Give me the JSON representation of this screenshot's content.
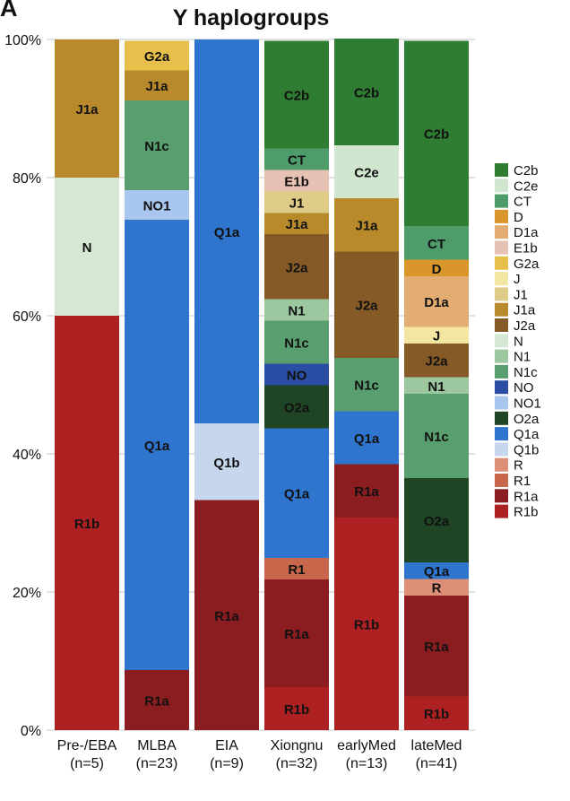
{
  "panel_letter": "A",
  "chart_data": {
    "type": "bar",
    "stacked": true,
    "title": "Y haplogroups",
    "xlabel": "",
    "ylabel": "",
    "ylim": [
      0,
      100
    ],
    "yticks": [
      "0%",
      "20%",
      "40%",
      "60%",
      "80%",
      "100%"
    ],
    "grid": true,
    "legend_position": "right",
    "categories": [
      {
        "name": "Pre-/EBA",
        "n": "(n=5)"
      },
      {
        "name": "MLBA",
        "n": "(n=23)"
      },
      {
        "name": "EIA",
        "n": "(n=9)"
      },
      {
        "name": "Xiongnu",
        "n": "(n=32)"
      },
      {
        "name": "earlyMed",
        "n": "(n=13)"
      },
      {
        "name": "lateMed",
        "n": "(n=41)"
      }
    ],
    "haplogroups": [
      {
        "name": "C2b",
        "color": "#2e7d32"
      },
      {
        "name": "C2e",
        "color": "#d0e6cf"
      },
      {
        "name": "CT",
        "color": "#4e9c69"
      },
      {
        "name": "D",
        "color": "#d9962a"
      },
      {
        "name": "D1a",
        "color": "#e2ac72"
      },
      {
        "name": "E1b",
        "color": "#e8c1b5"
      },
      {
        "name": "G2a",
        "color": "#e7c04c"
      },
      {
        "name": "J",
        "color": "#f2e6a2"
      },
      {
        "name": "J1",
        "color": "#decb88"
      },
      {
        "name": "J1a",
        "color": "#b88a2c"
      },
      {
        "name": "J2a",
        "color": "#855a26"
      },
      {
        "name": "N",
        "color": "#d6e7d3"
      },
      {
        "name": "N1",
        "color": "#9cc79f"
      },
      {
        "name": "N1c",
        "color": "#589e6e"
      },
      {
        "name": "NO",
        "color": "#2a4ea3"
      },
      {
        "name": "NO1",
        "color": "#a9c6ee"
      },
      {
        "name": "O2a",
        "color": "#1f4525"
      },
      {
        "name": "Q1a",
        "color": "#2f75cd"
      },
      {
        "name": "Q1b",
        "color": "#c6d6ec"
      },
      {
        "name": "R",
        "color": "#de8f77"
      },
      {
        "name": "R1",
        "color": "#c8674b"
      },
      {
        "name": "R1a",
        "color": "#8b1d20"
      },
      {
        "name": "R1b",
        "color": "#ae2122"
      }
    ],
    "stacks": [
      [
        {
          "group": "R1b",
          "value": 60
        },
        {
          "group": "N",
          "value": 20
        },
        {
          "group": "J1a",
          "value": 20
        }
      ],
      [
        {
          "group": "R1a",
          "value": 8.7
        },
        {
          "group": "Q1a",
          "value": 65.2
        },
        {
          "group": "NO1",
          "value": 4.3
        },
        {
          "group": "N1c",
          "value": 13.0
        },
        {
          "group": "J1a",
          "value": 4.3
        },
        {
          "group": "G2a",
          "value": 4.3
        }
      ],
      [
        {
          "group": "R1a",
          "value": 33.3
        },
        {
          "group": "Q1b",
          "value": 11.1
        },
        {
          "group": "Q1a",
          "value": 55.6
        }
      ],
      [
        {
          "group": "R1b",
          "value": 6.25
        },
        {
          "group": "R1a",
          "value": 15.6
        },
        {
          "group": "R1",
          "value": 3.1
        },
        {
          "group": "Q1a",
          "value": 18.75
        },
        {
          "group": "O2a",
          "value": 6.25
        },
        {
          "group": "NO",
          "value": 3.1
        },
        {
          "group": "N1c",
          "value": 6.25
        },
        {
          "group": "N1",
          "value": 3.1
        },
        {
          "group": "J2a",
          "value": 9.4
        },
        {
          "group": "J1a",
          "value": 3.1
        },
        {
          "group": "J1",
          "value": 3.1
        },
        {
          "group": "E1b",
          "value": 3.1
        },
        {
          "group": "CT",
          "value": 3.1
        },
        {
          "group": "C2b",
          "value": 15.6
        }
      ],
      [
        {
          "group": "R1b",
          "value": 30.8
        },
        {
          "group": "R1a",
          "value": 7.7
        },
        {
          "group": "Q1a",
          "value": 7.7
        },
        {
          "group": "N1c",
          "value": 7.7
        },
        {
          "group": "J2a",
          "value": 15.4
        },
        {
          "group": "J1a",
          "value": 7.7
        },
        {
          "group": "C2e",
          "value": 7.7
        },
        {
          "group": "C2b",
          "value": 15.4
        }
      ],
      [
        {
          "group": "R1b",
          "value": 4.9
        },
        {
          "group": "R1a",
          "value": 14.6
        },
        {
          "group": "R",
          "value": 2.4
        },
        {
          "group": "Q1a",
          "value": 2.4
        },
        {
          "group": "O2a",
          "value": 12.2
        },
        {
          "group": "N1c",
          "value": 12.2
        },
        {
          "group": "N1",
          "value": 2.4
        },
        {
          "group": "J2a",
          "value": 4.9
        },
        {
          "group": "J",
          "value": 2.4
        },
        {
          "group": "D1a",
          "value": 7.3
        },
        {
          "group": "D",
          "value": 2.4
        },
        {
          "group": "CT",
          "value": 4.9
        },
        {
          "group": "C2b",
          "value": 26.8
        }
      ]
    ]
  }
}
